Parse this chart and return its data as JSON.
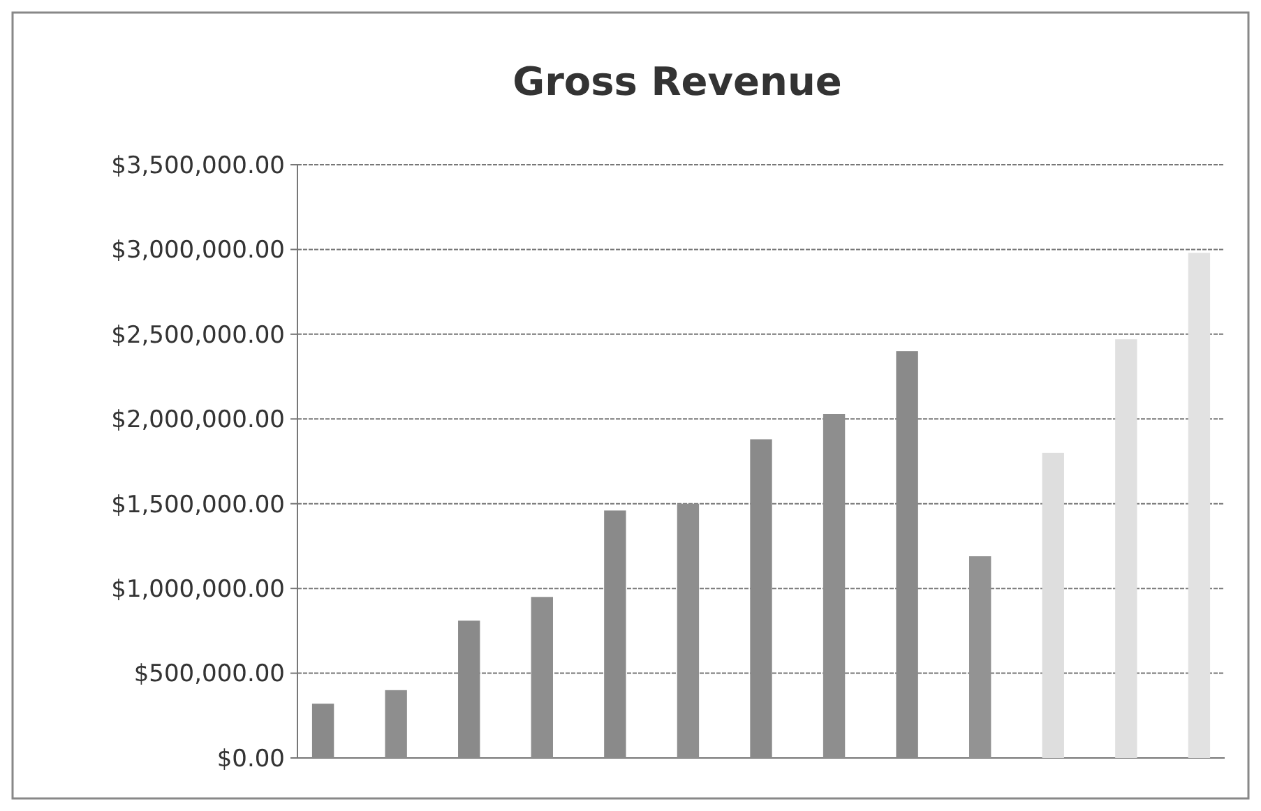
{
  "chart_data": {
    "type": "bar",
    "title": "Gross Revenue",
    "categories": [
      null,
      null,
      null,
      null,
      null,
      null,
      null,
      null,
      null,
      null,
      null,
      null,
      null
    ],
    "values": [
      320000,
      400000,
      810000,
      950000,
      1460000,
      1500000,
      1880000,
      2030000,
      2400000,
      1190000,
      1800000,
      2470000,
      2980000
    ],
    "colors": [
      "#8a8a8a",
      "#8e8e8e",
      "#8a8a8a",
      "#8e8e8e",
      "#8a8a8a",
      "#8e8e8e",
      "#8a8a8a",
      "#8e8e8e",
      "#8a8a8a",
      "#939393",
      "#dedede",
      "#e0e0e0",
      "#e2e2e2"
    ],
    "ylim": [
      0,
      3500000
    ],
    "yticks": [
      {
        "value": 0,
        "label": "$0.00"
      },
      {
        "value": 500000,
        "label": "$500,000.00"
      },
      {
        "value": 1000000,
        "label": "$1,000,000.00"
      },
      {
        "value": 1500000,
        "label": "$1,500,000.00"
      },
      {
        "value": 2000000,
        "label": "$2,000,000.00"
      },
      {
        "value": 2500000,
        "label": "$2,500,000.00"
      },
      {
        "value": 3000000,
        "label": "$3,000,000.00"
      },
      {
        "value": 3500000,
        "label": "$3,500,000.00"
      }
    ],
    "grid": "y"
  }
}
